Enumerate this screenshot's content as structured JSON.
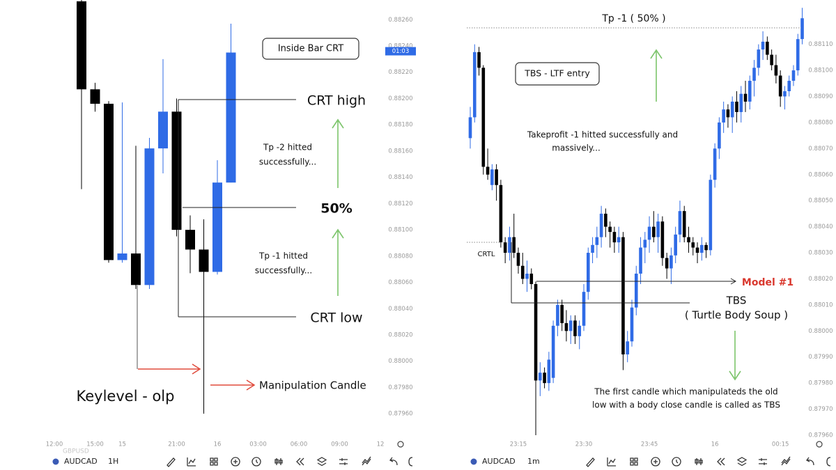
{
  "chart_data": [
    {
      "type": "candlestick",
      "symbol": "AUDCAD",
      "interval": "1H",
      "watermark": "GBPUSD",
      "up_color": "#2f6be6",
      "down_color": "#000000",
      "categories": [
        "12:00",
        null,
        null,
        "15:00",
        null,
        "15",
        null,
        null,
        null,
        "21:00",
        null,
        null,
        "16",
        null,
        null,
        "03:00",
        null,
        null,
        "06:00",
        null,
        null,
        "09:00",
        null,
        null,
        "12"
      ],
      "open": [
        null,
        null,
        0.88274,
        0.88207,
        0.88196,
        0.88077,
        0.88082,
        0.88058,
        0.88162,
        0.8819,
        0.881,
        0.88085,
        0.88068,
        0.88136,
        null,
        null,
        null,
        null,
        null,
        null,
        null,
        null,
        null,
        null,
        null
      ],
      "high": [
        null,
        null,
        0.88275,
        0.88212,
        0.88198,
        0.88197,
        0.88164,
        0.8817,
        0.8823,
        0.882,
        0.88111,
        0.88108,
        0.88153,
        0.88257,
        null,
        null,
        null,
        null,
        null,
        null,
        null,
        null,
        null,
        null,
        null
      ],
      "low": [
        null,
        null,
        0.88131,
        0.8819,
        0.88075,
        0.88075,
        0.88055,
        0.88055,
        0.88143,
        0.88095,
        0.88067,
        0.8796,
        0.88066,
        0.88136,
        null,
        null,
        null,
        null,
        null,
        null,
        null,
        null,
        null,
        null,
        null
      ],
      "close": [
        null,
        null,
        0.88207,
        0.88196,
        0.88077,
        0.88082,
        0.88058,
        0.88162,
        0.8819,
        0.881,
        0.88085,
        0.88068,
        0.88136,
        0.88235,
        null,
        null,
        null,
        null,
        null,
        null,
        null,
        null,
        null,
        null,
        null
      ],
      "ylim": [
        0.87941,
        0.88275
      ],
      "yticks": [
        {
          "value": 0.8826,
          "label": "0.88260"
        },
        {
          "value": 0.8824,
          "label": "0.88240"
        },
        {
          "value": 0.8822,
          "label": "0.88220"
        },
        {
          "value": 0.882,
          "label": "0.88200"
        },
        {
          "value": 0.8818,
          "label": "0.88180"
        },
        {
          "value": 0.8816,
          "label": "0.88160"
        },
        {
          "value": 0.8814,
          "label": "0.88140"
        },
        {
          "value": 0.8812,
          "label": "0.88120"
        },
        {
          "value": 0.881,
          "label": "0.88100"
        },
        {
          "value": 0.8808,
          "label": "0.88080"
        },
        {
          "value": 0.8806,
          "label": "0.88060"
        },
        {
          "value": 0.8804,
          "label": "0.88040"
        },
        {
          "value": 0.8802,
          "label": "0.88020"
        },
        {
          "value": 0.88,
          "label": "0.88000"
        },
        {
          "value": 0.8798,
          "label": "0.87980"
        },
        {
          "value": 0.8796,
          "label": "0.87960"
        }
      ],
      "price_tag": {
        "value": 0.88236,
        "label": "01:03"
      },
      "annotations": [
        "Inside Bar CRT",
        "CRT high",
        [
          "Tp -2 hitted",
          "successfully..."
        ],
        "50%",
        [
          "Tp -1 hitted",
          "successfully..."
        ],
        "CRT low",
        "Manipulation Candle",
        "Keylevel - olp"
      ]
    },
    {
      "type": "candlestick",
      "symbol": "AUDCAD",
      "interval": "1m",
      "up_color": "#2f6be6",
      "down_color": "#000000",
      "categories": [
        null,
        null,
        null,
        null,
        null,
        null,
        null,
        null,
        null,
        null,
        null,
        "23:15",
        null,
        null,
        null,
        null,
        null,
        null,
        null,
        null,
        null,
        null,
        null,
        null,
        null,
        null,
        "23:30",
        null,
        null,
        null,
        null,
        null,
        null,
        null,
        null,
        null,
        null,
        null,
        null,
        null,
        null,
        "23:45",
        null,
        null,
        null,
        null,
        null,
        null,
        null,
        null,
        null,
        null,
        null,
        null,
        null,
        null,
        "16",
        null,
        null,
        null,
        null,
        null,
        null,
        null,
        null,
        null,
        null,
        null,
        null,
        null,
        null,
        "00:15",
        null,
        null,
        null,
        null,
        null
      ],
      "open": [
        0.88074,
        0.88082,
        0.88107,
        0.88101,
        0.88063,
        0.88056,
        0.88062,
        0.88056,
        0.88034,
        0.8803,
        0.88036,
        0.8803,
        0.88025,
        0.8802,
        0.88022,
        0.88018,
        0.87981,
        0.87984,
        0.8798,
        0.87982,
        0.88002,
        0.8801,
        0.88003,
        0.88,
        0.88004,
        0.87998,
        0.88002,
        0.88015,
        0.8803,
        0.88033,
        0.88036,
        0.88045,
        0.8804,
        0.88038,
        0.88034,
        0.88036,
        0.87991,
        0.87996,
        0.88009,
        0.88022,
        0.88032,
        0.88035,
        0.8804,
        0.88036,
        0.88042,
        0.88028,
        0.88024,
        0.88029,
        0.88037,
        0.88046,
        0.88036,
        0.88034,
        0.88032,
        0.8803,
        0.88033,
        0.88031,
        0.88058,
        0.8807,
        0.8808,
        0.88085,
        0.88082,
        0.88088,
        0.88084,
        0.88091,
        0.88088,
        0.88096,
        0.88101,
        0.88108,
        0.88111,
        0.88106,
        0.88102,
        0.88098,
        0.8809,
        0.88092,
        0.88096,
        0.881,
        0.88112
      ],
      "high": [
        0.88086,
        0.8811,
        0.88109,
        0.88102,
        0.8807,
        0.88064,
        0.88064,
        0.88058,
        0.88036,
        0.8804,
        0.88045,
        0.88032,
        0.8803,
        0.88027,
        0.88024,
        0.88019,
        0.87988,
        0.87986,
        0.87992,
        0.88004,
        0.88012,
        0.88012,
        0.88008,
        0.88006,
        0.88006,
        0.88004,
        0.88018,
        0.88032,
        0.88036,
        0.8804,
        0.88048,
        0.88047,
        0.88042,
        0.8804,
        0.8804,
        0.88038,
        0.88,
        0.88012,
        0.88025,
        0.88036,
        0.88038,
        0.88044,
        0.88046,
        0.88045,
        0.88044,
        0.8803,
        0.88032,
        0.8804,
        0.8805,
        0.88048,
        0.8804,
        0.88036,
        0.88034,
        0.88036,
        0.88034,
        0.8806,
        0.88072,
        0.88082,
        0.88088,
        0.88087,
        0.8809,
        0.88092,
        0.88094,
        0.88096,
        0.88098,
        0.88104,
        0.8811,
        0.88115,
        0.88113,
        0.88108,
        0.88106,
        0.881,
        0.88094,
        0.88098,
        0.88102,
        0.88114,
        0.88124
      ],
      "low": [
        0.8807,
        0.8808,
        0.88098,
        0.8806,
        0.88058,
        0.88054,
        0.8805,
        0.88032,
        0.88026,
        0.88027,
        0.88028,
        0.88022,
        0.88018,
        0.88015,
        0.88016,
        0.8796,
        0.87975,
        0.87978,
        0.87977,
        0.8798,
        0.87998,
        0.88,
        0.87996,
        0.87995,
        0.87995,
        0.87993,
        0.88,
        0.88012,
        0.88026,
        0.88028,
        0.88032,
        0.88036,
        0.88032,
        0.8803,
        0.8803,
        0.87985,
        0.87988,
        0.87994,
        0.88006,
        0.88018,
        0.88026,
        0.8803,
        0.88034,
        0.8803,
        0.88025,
        0.8802,
        0.88018,
        0.88026,
        0.88034,
        0.88034,
        0.8803,
        0.88029,
        0.88026,
        0.88027,
        0.88028,
        0.88029,
        0.88055,
        0.88066,
        0.88076,
        0.88078,
        0.88076,
        0.8808,
        0.8808,
        0.88084,
        0.88085,
        0.8809,
        0.88098,
        0.88104,
        0.88104,
        0.881,
        0.88095,
        0.88086,
        0.88085,
        0.8809,
        0.88094,
        0.88098,
        0.8811
      ],
      "close": [
        0.88082,
        0.88107,
        0.88101,
        0.88063,
        0.8806,
        0.88062,
        0.88056,
        0.88034,
        0.8803,
        0.88036,
        0.8803,
        0.88025,
        0.8802,
        0.88022,
        0.88018,
        0.87981,
        0.87984,
        0.8798,
        0.87989,
        0.88002,
        0.8801,
        0.88003,
        0.88,
        0.88004,
        0.87998,
        0.88002,
        0.88015,
        0.8803,
        0.88033,
        0.88036,
        0.88045,
        0.8804,
        0.88038,
        0.88034,
        0.88036,
        0.87991,
        0.87996,
        0.88009,
        0.88022,
        0.88032,
        0.88035,
        0.8804,
        0.88036,
        0.88042,
        0.88028,
        0.88024,
        0.88029,
        0.88037,
        0.88046,
        0.88036,
        0.88034,
        0.88032,
        0.8803,
        0.88033,
        0.88031,
        0.88058,
        0.8807,
        0.8808,
        0.88085,
        0.88082,
        0.88088,
        0.88084,
        0.88091,
        0.88088,
        0.88096,
        0.88101,
        0.88108,
        0.88111,
        0.88106,
        0.88102,
        0.88098,
        0.8809,
        0.88092,
        0.88096,
        0.881,
        0.88112,
        0.8812
      ],
      "ylim": [
        0.87956,
        0.88127
      ],
      "yticks": [
        {
          "value": 0.8811,
          "label": "0.88110"
        },
        {
          "value": 0.881,
          "label": "0.88100"
        },
        {
          "value": 0.8809,
          "label": "0.88090"
        },
        {
          "value": 0.8808,
          "label": "0.88080"
        },
        {
          "value": 0.8807,
          "label": "0.88070"
        },
        {
          "value": 0.8806,
          "label": "0.88060"
        },
        {
          "value": 0.8805,
          "label": "0.88050"
        },
        {
          "value": 0.8804,
          "label": "0.88040"
        },
        {
          "value": 0.8803,
          "label": "0.88030"
        },
        {
          "value": 0.8802,
          "label": "0.88020"
        },
        {
          "value": 0.8801,
          "label": "0.88010"
        },
        {
          "value": 0.88,
          "label": "0.88000"
        },
        {
          "value": 0.8799,
          "label": "0.87990"
        },
        {
          "value": 0.8798,
          "label": "0.87980"
        },
        {
          "value": 0.8797,
          "label": "0.87970"
        },
        {
          "value": 0.8796,
          "label": "0.87960"
        }
      ],
      "annotations": [
        "Tp -1 ( 50% )",
        "TBS - LTF entry",
        [
          "Takeprofit -1 hitted successfully and",
          "massively..."
        ],
        "CRTL",
        "Model #1",
        [
          "TBS",
          "( Turtle Body Soup )"
        ],
        [
          "The first candle which manipulateds the old",
          "low with a body close candle is called as TBS"
        ]
      ]
    }
  ]
}
